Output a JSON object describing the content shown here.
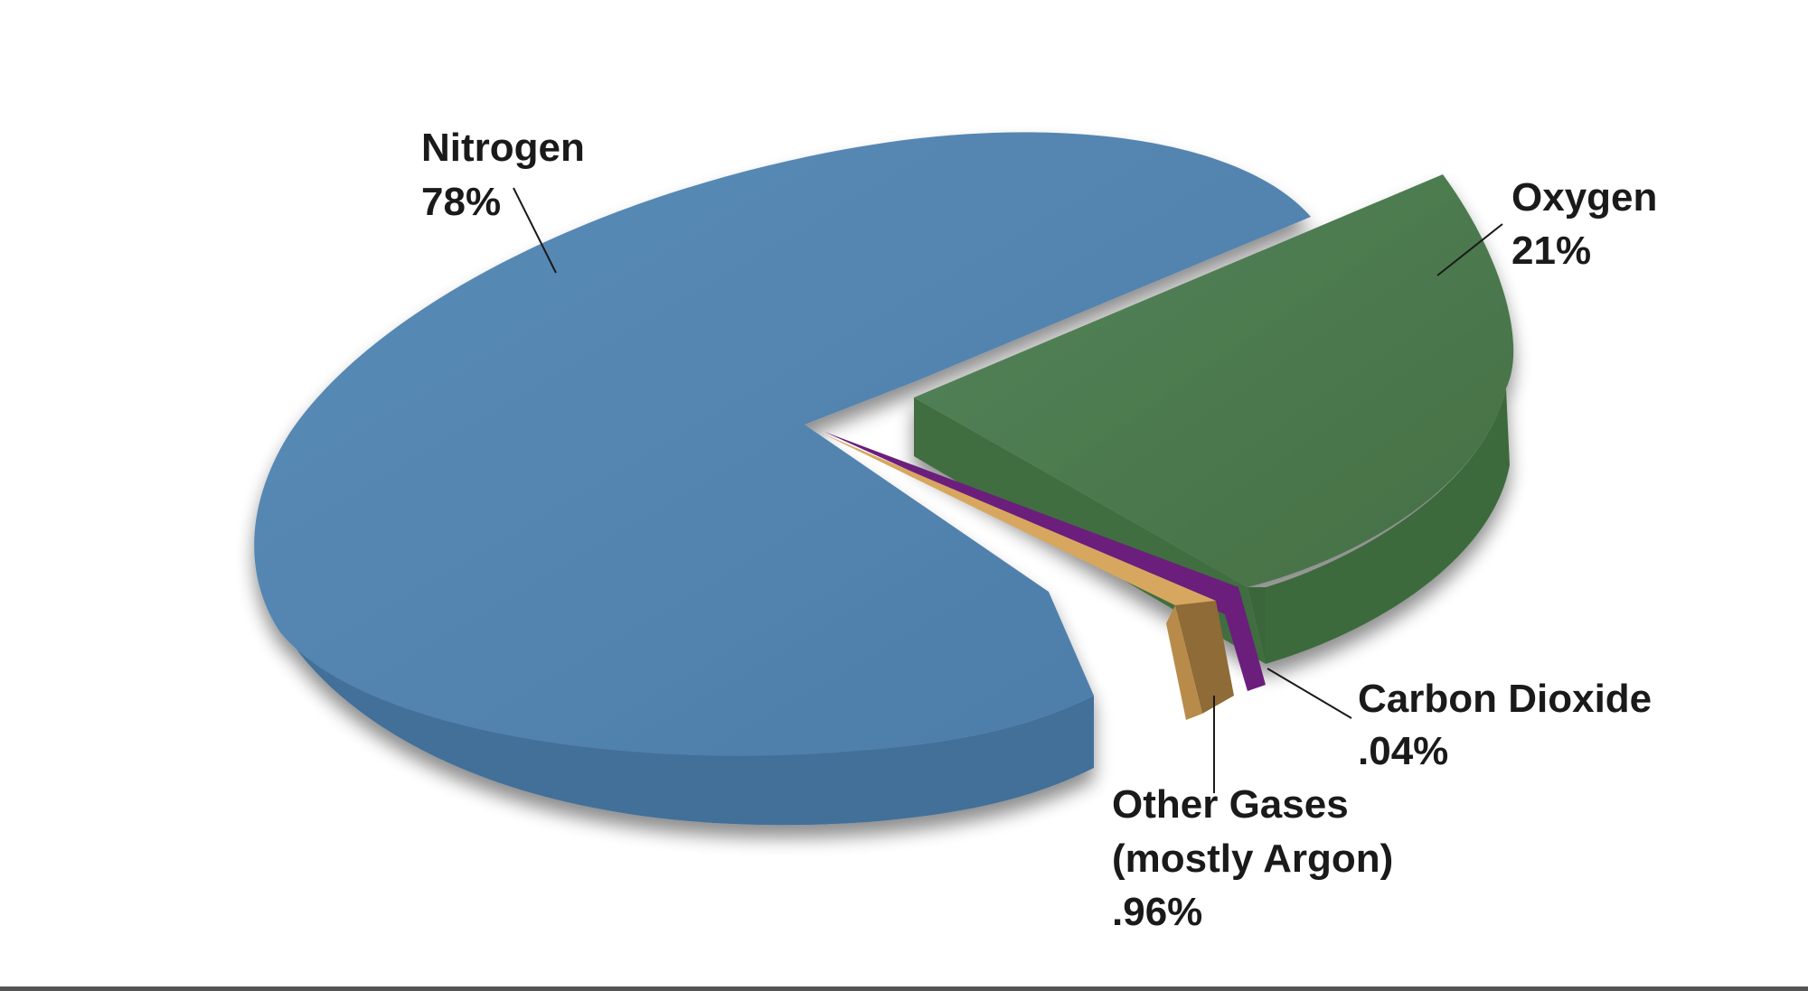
{
  "chart_data": {
    "type": "pie",
    "three_d": true,
    "slices": [
      {
        "name": "Nitrogen",
        "label": "78%",
        "value": 78,
        "color": "#5385b0",
        "side_color": "#3f6a94",
        "exploded": false
      },
      {
        "name": "Oxygen",
        "label": "21%",
        "value": 21,
        "color": "#4d7d4c",
        "side_color": "#3b6a3b",
        "exploded": true
      },
      {
        "name": "Carbon Dioxide",
        "label": ".04%",
        "value": 0.04,
        "color": "#6a1f7a",
        "side_color": "#4e1459",
        "exploded": true
      },
      {
        "name": "Other Gases",
        "name_line2": "(mostly Argon)",
        "label": ".96%",
        "value": 0.96,
        "color": "#d4a35b",
        "side_color": "#8e6b37",
        "exploded": true
      }
    ]
  }
}
